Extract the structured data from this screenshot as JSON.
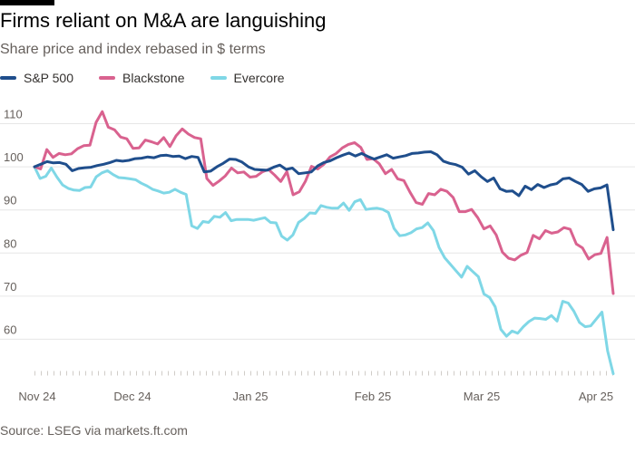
{
  "title": "Firms reliant on M&A are languishing",
  "subtitle": "Share price and index rebased in $ terms",
  "source": "Source: LSEG via markets.ft.com",
  "colors": {
    "sp500": "#1f4e8c",
    "blackstone": "#d9628f",
    "evercore": "#7fd7e6"
  },
  "chart_data": {
    "type": "line",
    "title": "Firms reliant on M&A are languishing",
    "subtitle": "Share price and index rebased in $ terms",
    "xlabel": "",
    "ylabel": "",
    "x_ticks": [
      "Nov 24",
      "Dec 24",
      "Jan 25",
      "Feb 25",
      "Mar 25",
      "Apr 25"
    ],
    "y_ticks": [
      60,
      70,
      80,
      90,
      100,
      110
    ],
    "ylim": [
      50,
      116
    ],
    "grid": true,
    "legend": "top-left",
    "series": [
      {
        "name": "S&P 500",
        "values": [
          100,
          100.6,
          101.2,
          100.9,
          101,
          100.6,
          99.1,
          99.6,
          99.8,
          99.9,
          100.3,
          100.6,
          101,
          101.5,
          101.3,
          101.5,
          101.9,
          102,
          102.3,
          102.1,
          102.6,
          102.7,
          102.4,
          102.5,
          101.9,
          102.4,
          102.2,
          98.8,
          99,
          100,
          100.8,
          101.8,
          101.7,
          101.1,
          100,
          99.4,
          99.3,
          99.2,
          99.9,
          100.4,
          99.4,
          99.7,
          98.4,
          98.6,
          98.8,
          100.2,
          101,
          101.4,
          102.1,
          102.7,
          103.2,
          102.5,
          103.1,
          102.4,
          101.8,
          102.3,
          102.8,
          102,
          102.3,
          102.6,
          103.1,
          103.2,
          103.4,
          103.5,
          102.8,
          101.3,
          100.8,
          100.5,
          99.9,
          98.3,
          99.1,
          97.7,
          96.6,
          97.4,
          94.9,
          94.3,
          94.4,
          93.3,
          95.5,
          94.7,
          95.9,
          95.2,
          95.8,
          96.1,
          97.2,
          97.4,
          96.6,
          95.9,
          94.3,
          94.9,
          95.1,
          95.8,
          85.4
        ]
      },
      {
        "name": "Blackstone",
        "values": [
          100,
          99.5,
          104,
          102.2,
          103.1,
          102.8,
          103,
          104.2,
          104.9,
          105,
          110.3,
          112.8,
          109.2,
          108.6,
          106.9,
          106.5,
          104.3,
          104.4,
          106.2,
          105.8,
          105.3,
          106.8,
          104.7,
          107.2,
          108.8,
          107.6,
          106.8,
          106.5,
          97.3,
          95.7,
          96.7,
          97.9,
          99.7,
          98.6,
          98.8,
          97.6,
          97.8,
          98.8,
          99.4,
          98.1,
          96.6,
          98.9,
          93.5,
          94.2,
          96.6,
          100.1,
          99.5,
          100.6,
          102.3,
          103.1,
          104.4,
          105.2,
          105.6,
          104.5,
          101.7,
          101.9,
          100.7,
          98.4,
          99.4,
          97.2,
          96.8,
          94.1,
          91.7,
          91.3,
          93.8,
          93.5,
          94.8,
          94.3,
          92.9,
          89.6,
          89.6,
          90.1,
          88.2,
          85.6,
          86.3,
          84.2,
          80.2,
          78.8,
          78.4,
          79.5,
          80.1,
          84.1,
          83.3,
          85.2,
          84.6,
          84.9,
          85.9,
          85.5,
          82.1,
          81.2,
          78.6,
          79.6,
          79.9,
          83.6,
          70.6
        ]
      },
      {
        "name": "Evercore",
        "values": [
          100,
          97.3,
          97.8,
          99.7,
          97.6,
          95.8,
          95,
          94.6,
          94.5,
          95.2,
          95.3,
          97.7,
          98.6,
          99.1,
          98.2,
          97.5,
          97.4,
          97.2,
          97,
          96.2,
          95.6,
          94.8,
          94.4,
          93.9,
          94.1,
          94.8,
          94.1,
          93.6,
          86.3,
          85.7,
          87.3,
          87.1,
          88.5,
          88.3,
          89.4,
          87.5,
          87.8,
          87.8,
          87.8,
          87.6,
          87.9,
          88.2,
          87.1,
          87,
          83.9,
          83,
          84.2,
          87.1,
          88,
          89.3,
          89.2,
          91,
          90.6,
          90.4,
          90.4,
          91.6,
          89.9,
          91.9,
          92.4,
          90.1,
          90.3,
          90.4,
          90.1,
          89.4,
          85.7,
          84,
          84.2,
          84.7,
          85.6,
          85.9,
          87,
          85.2,
          81.3,
          78.9,
          77.4,
          75.9,
          74.4,
          76.9,
          75.7,
          74.5,
          70.5,
          69.7,
          67.5,
          62.3,
          60.7,
          61.9,
          61.4,
          62.9,
          64.1,
          64.9,
          64.8,
          64.6,
          65.5,
          64.2,
          68.8,
          68.4,
          66.5,
          63.9,
          62.9,
          63.1,
          64.7,
          66.3,
          57.3,
          52
        ]
      }
    ]
  }
}
